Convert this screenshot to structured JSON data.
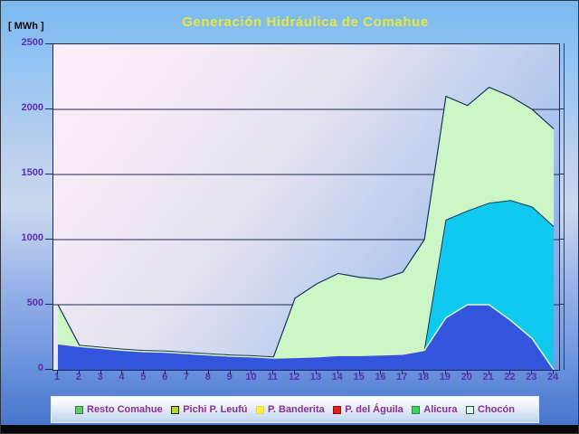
{
  "window": {
    "title_label": "Generación Hidráulica de Comahue",
    "y_unit_label": "[ MWh ]"
  },
  "colors": {
    "title_text": "#E8E83A",
    "axis_label_text": "#5B2DB0",
    "legend_text": "#8B2F8F",
    "gridline": "#1B2A52",
    "plot_border": "#1B2A52",
    "area_edge_dark": "#16335A",
    "area_edge_pale": "#DCF5BE",
    "page_background_top": "#79B9F0",
    "page_background_bottom": "#3F6CC4",
    "plot_background_topleft": "#FBEFF9",
    "plot_background_bottomright": "#6E9CE4",
    "bottom_bar": "#070707"
  },
  "chart_data": {
    "type": "area",
    "stacked": true,
    "title": "Generación Hidráulica de Comahue",
    "ylabel": "[ MWh ]",
    "xlabel": "",
    "grid": true,
    "legend_position": "bottom",
    "ylim": [
      0,
      2500
    ],
    "yticks": [
      0,
      500,
      1000,
      1500,
      2000,
      2500
    ],
    "x": [
      1,
      2,
      3,
      4,
      5,
      6,
      7,
      8,
      9,
      10,
      11,
      12,
      13,
      14,
      15,
      16,
      17,
      18,
      19,
      20,
      21,
      22,
      23,
      24
    ],
    "series": [
      {
        "name": "Resto Comahue",
        "fill": "#3355DD",
        "marker_fill": "#66C873",
        "marker_border": "#2F7F3F",
        "values": [
          200,
          180,
          165,
          150,
          140,
          135,
          125,
          115,
          105,
          100,
          90,
          95,
          100,
          110,
          110,
          115,
          120,
          150,
          400,
          500,
          500,
          380,
          240,
          0
        ]
      },
      {
        "name": "Pichi P. Leufú",
        "fill": "#B9D232",
        "marker_fill": "#B9D232",
        "marker_border": "#222222",
        "values": [
          0,
          0,
          0,
          0,
          0,
          0,
          0,
          0,
          0,
          0,
          0,
          0,
          0,
          0,
          0,
          0,
          0,
          0,
          0,
          0,
          0,
          0,
          0,
          0
        ]
      },
      {
        "name": "P. Banderita",
        "fill": "#FFF133",
        "marker_fill": "#FFF133",
        "marker_border": "#D8D860",
        "values": [
          0,
          0,
          0,
          0,
          0,
          0,
          0,
          0,
          0,
          0,
          0,
          0,
          0,
          0,
          0,
          0,
          0,
          0,
          0,
          0,
          0,
          0,
          0,
          0
        ]
      },
      {
        "name": "P. del Águila",
        "fill": "#E02020",
        "marker_fill": "#E02020",
        "marker_border": "#901010",
        "values": [
          0,
          0,
          0,
          0,
          0,
          0,
          0,
          0,
          0,
          0,
          0,
          0,
          0,
          0,
          0,
          0,
          0,
          0,
          0,
          0,
          0,
          0,
          0,
          0
        ]
      },
      {
        "name": "Alicura",
        "fill": "#10C9EE",
        "marker_fill": "#3FD45F",
        "marker_border": "#1F8F3F",
        "values": [
          0,
          0,
          0,
          0,
          0,
          0,
          0,
          0,
          0,
          0,
          0,
          0,
          0,
          0,
          0,
          0,
          0,
          0,
          750,
          720,
          780,
          920,
          1010,
          1100
        ]
      },
      {
        "name": "Chocón",
        "fill": "#CDF6C6",
        "marker_fill": "#D9FFEF",
        "marker_border": "#225533",
        "values": [
          300,
          8,
          8,
          8,
          8,
          8,
          8,
          8,
          8,
          8,
          8,
          455,
          560,
          630,
          600,
          580,
          630,
          850,
          950,
          810,
          890,
          800,
          750,
          750
        ]
      }
    ]
  }
}
